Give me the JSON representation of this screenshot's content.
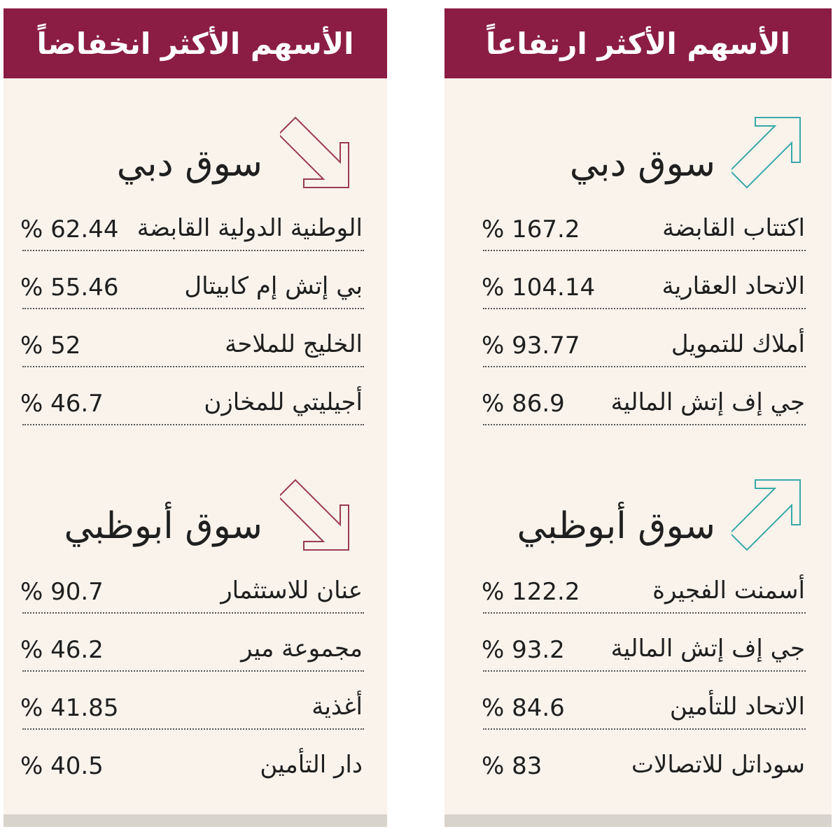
{
  "colors": {
    "header_bg": "#8b1d44",
    "panel_bg": "#f9f3ec",
    "down_arrow": "#9b3a52",
    "up_arrow": "#3aa8a8"
  },
  "losers": {
    "title": "الأسهم الأكثر انخفاضاً",
    "icon": "arrow-down-right-icon",
    "markets": [
      {
        "name": "سوق دبي",
        "rows": [
          {
            "name": "الوطنية الدولية القابضة",
            "pct": "% 62.44"
          },
          {
            "name": "بي إتش إم كابيتال",
            "pct": "% 55.46"
          },
          {
            "name": "الخليج للملاحة",
            "pct": "% 52"
          },
          {
            "name": "أجيليتي للمخازن",
            "pct": "% 46.7"
          }
        ]
      },
      {
        "name": "سوق أبوظبي",
        "rows": [
          {
            "name": "عنان للاستثمار",
            "pct": "% 90.7"
          },
          {
            "name": "مجموعة مير",
            "pct": "% 46.2"
          },
          {
            "name": "أغذية",
            "pct": "% 41.85"
          },
          {
            "name": "دار التأمين",
            "pct": "% 40.5"
          }
        ]
      }
    ]
  },
  "gainers": {
    "title": "الأسهم الأكثر ارتفاعاً",
    "icon": "arrow-up-right-icon",
    "markets": [
      {
        "name": "سوق دبي",
        "rows": [
          {
            "name": "اكتتاب القابضة",
            "pct": "% 167.2"
          },
          {
            "name": "الاتحاد العقارية",
            "pct": "% 104.14"
          },
          {
            "name": "أملاك للتمويل",
            "pct": "% 93.77"
          },
          {
            "name": "جي إف إتش المالية",
            "pct": "% 86.9"
          }
        ]
      },
      {
        "name": "سوق أبوظبي",
        "rows": [
          {
            "name": "أسمنت الفجيرة",
            "pct": "% 122.2"
          },
          {
            "name": "جي إف إتش المالية",
            "pct": "% 93.2"
          },
          {
            "name": "الاتحاد للتأمين",
            "pct": "% 84.6"
          },
          {
            "name": "سوداتل للاتصالات",
            "pct": "% 83"
          }
        ]
      }
    ]
  }
}
